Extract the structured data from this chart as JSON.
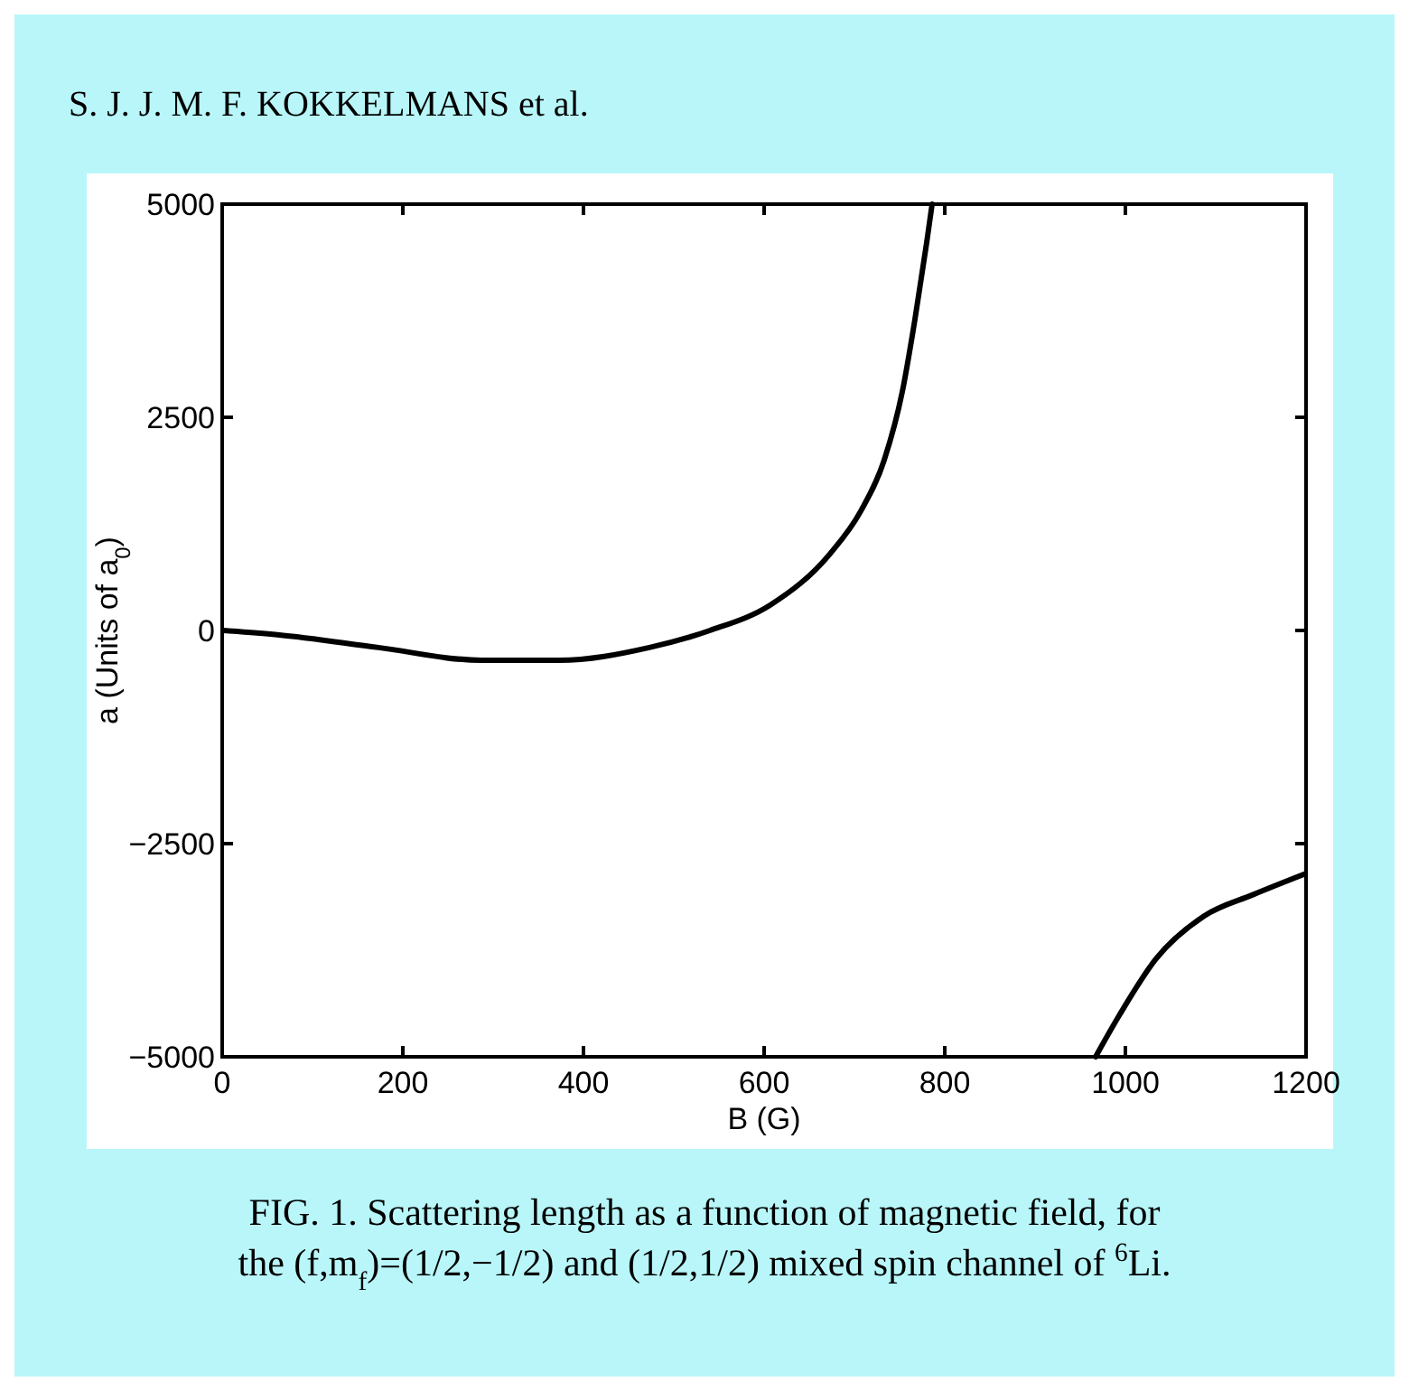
{
  "chart_data": {
    "type": "line",
    "xlabel": "B (G)",
    "ylabel": "a (Units of a$_{0}$)",
    "annotations": [
      "S. J. J. M. F. KOKKELMANS et al.",
      "FIG. 1. Scattering length as a function of magnetic field, for the (f,m$_{f}$)=(1/2,−1/2) and (1/2,1/2) mixed spin channel of $^{6}$Li."
    ],
    "xlim": [
      0,
      1200
    ],
    "xticks": [
      0,
      200,
      400,
      600,
      800,
      1000,
      1200
    ],
    "ylim": [
      -5000,
      5000
    ],
    "yticks": [
      {
        "value": -5000,
        "label": "−5000"
      },
      {
        "value": -2500,
        "label": "−2500"
      },
      0,
      2500,
      5000
    ],
    "grid": false,
    "line_style": "solid",
    "series": [
      {
        "color": "#000000",
        "x": [
          0,
          61,
          173,
          287,
          373,
          473,
          540,
          607,
          673,
          707,
          733,
          753,
          767,
          780,
          786
        ],
        "values": [
          0,
          -50,
          -200,
          -350,
          -350,
          -200,
          0,
          300,
          900,
          1400,
          2000,
          2800,
          3650,
          4550,
          5000
        ]
      },
      {
        "color": "#000000",
        "x": [
          967,
          994,
          1034,
          1087,
          1141,
          1200
        ],
        "values": [
          -5000,
          -4500,
          -3850,
          -3350,
          -3100,
          -2850
        ]
      }
    ]
  }
}
